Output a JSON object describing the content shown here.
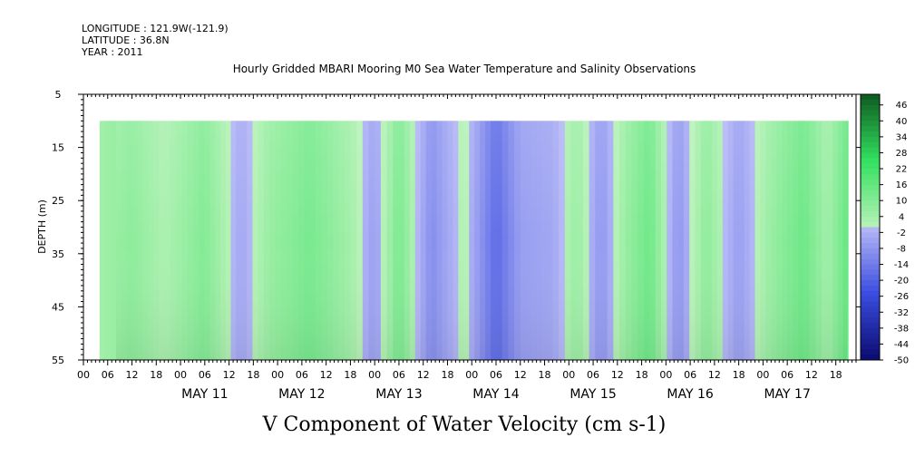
{
  "meta": {
    "longitude": "LONGITUDE : 121.9W(-121.9)",
    "latitude": "LATITUDE : 36.8N",
    "year": "YEAR : 2011"
  },
  "chart_data": {
    "type": "heatmap",
    "title": "Hourly Gridded MBARI Mooring M0 Sea Water Temperature and Salinity Observations",
    "subtitle": "V Component of Water Velocity (cm s-1)",
    "ylabel": "DEPTH (m)",
    "xlabel": "",
    "y_ticks": [
      5,
      15,
      25,
      35,
      45,
      55
    ],
    "ylim": [
      5,
      55
    ],
    "y_inverted": true,
    "data_depth_range": [
      10,
      55
    ],
    "x_start": "2011-05-10T00:00",
    "x_end": "2011-05-17T23:00",
    "data_start": "2011-05-10T04:00",
    "data_end": "2011-05-17T21:00",
    "x_hour_ticks": [
      "00",
      "06",
      "12",
      "18",
      "00",
      "06",
      "12",
      "18",
      "00",
      "06",
      "12",
      "18",
      "00",
      "06",
      "12",
      "18",
      "00",
      "06",
      "12",
      "18",
      "00",
      "06",
      "12",
      "18",
      "00",
      "06",
      "12",
      "18",
      "00",
      "06",
      "12",
      "18"
    ],
    "day_labels": [
      "MAY 11",
      "MAY 12",
      "MAY 13",
      "MAY 14",
      "MAY 15",
      "MAY 16",
      "MAY 17"
    ],
    "colorbar_labels": [
      46,
      40,
      34,
      28,
      22,
      16,
      10,
      4,
      -2,
      -8,
      -14,
      -20,
      -26,
      -32,
      -38,
      -44,
      -50
    ],
    "colorbar_range": [
      -50,
      50
    ],
    "time_profile": [
      {
        "t": "2011-05-10T04:00",
        "v": 4
      },
      {
        "t": "2011-05-10T12:00",
        "v": 8
      },
      {
        "t": "2011-05-10T20:00",
        "v": 2
      },
      {
        "t": "2011-05-11T06:00",
        "v": 10
      },
      {
        "t": "2011-05-11T15:00",
        "v": -4
      },
      {
        "t": "2011-05-11T22:00",
        "v": 6
      },
      {
        "t": "2011-05-12T08:00",
        "v": 12
      },
      {
        "t": "2011-05-12T18:00",
        "v": 4
      },
      {
        "t": "2011-05-13T00:00",
        "v": -6
      },
      {
        "t": "2011-05-13T06:00",
        "v": 12
      },
      {
        "t": "2011-05-13T14:00",
        "v": -10
      },
      {
        "t": "2011-05-13T22:00",
        "v": 2
      },
      {
        "t": "2011-05-14T06:00",
        "v": -18
      },
      {
        "t": "2011-05-14T12:00",
        "v": -6
      },
      {
        "t": "2011-05-14T20:00",
        "v": -4
      },
      {
        "t": "2011-05-15T02:00",
        "v": 6
      },
      {
        "t": "2011-05-15T08:00",
        "v": -8
      },
      {
        "t": "2011-05-15T14:00",
        "v": 6
      },
      {
        "t": "2011-05-15T20:00",
        "v": 14
      },
      {
        "t": "2011-05-16T03:00",
        "v": -8
      },
      {
        "t": "2011-05-16T10:00",
        "v": 8
      },
      {
        "t": "2011-05-16T18:00",
        "v": -6
      },
      {
        "t": "2011-05-17T02:00",
        "v": 6
      },
      {
        "t": "2011-05-17T10:00",
        "v": 14
      },
      {
        "t": "2011-05-17T16:00",
        "v": 4
      },
      {
        "t": "2011-05-17T21:00",
        "v": 16
      }
    ],
    "colors": {
      "negative_strong": "#0b0b70",
      "negative_mid": "#3a4de0",
      "negative_light": "#b6b8f6",
      "positive_light": "#b8f2b8",
      "positive_mid": "#33e060",
      "positive_strong": "#0d5a20"
    }
  }
}
